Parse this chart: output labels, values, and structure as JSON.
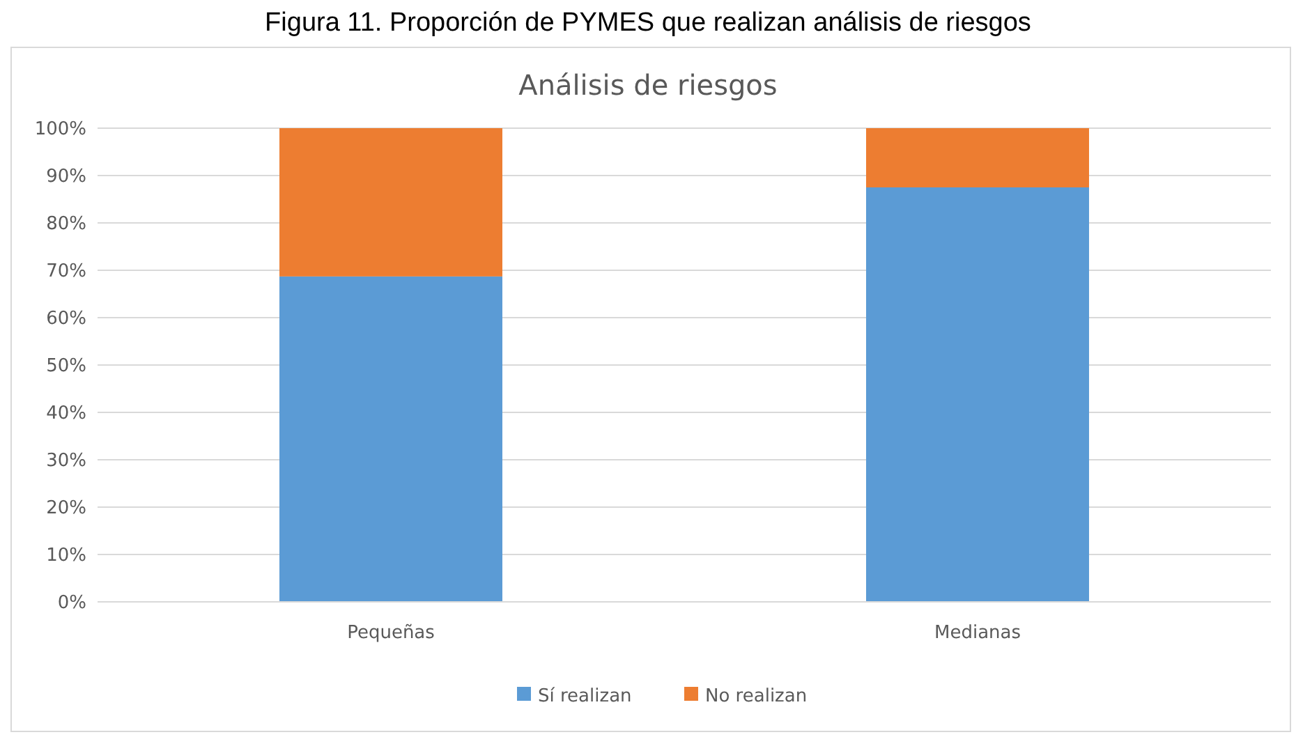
{
  "chart_data": {
    "type": "bar",
    "title": "Análisis de riesgos",
    "annotations": [
      "Figura 11. Proporción de PYMES que realizan análisis de riesgos"
    ],
    "categories": [
      "Pequeñas",
      "Medianas"
    ],
    "series": [
      {
        "name": "Sí realizan",
        "color": "#5b9bd5",
        "values": [
          68.7,
          87.5
        ]
      },
      {
        "name": "No realizan",
        "color": "#ed7d31",
        "values": [
          31.3,
          12.5
        ]
      }
    ],
    "stacked": true,
    "ylim": [
      0,
      100
    ],
    "yticks": [
      {
        "value": 0,
        "label": "0%"
      },
      {
        "value": 10,
        "label": "10%"
      },
      {
        "value": 20,
        "label": "20%"
      },
      {
        "value": 30,
        "label": "30%"
      },
      {
        "value": 40,
        "label": "40%"
      },
      {
        "value": 50,
        "label": "50%"
      },
      {
        "value": 60,
        "label": "60%"
      },
      {
        "value": 70,
        "label": "70%"
      },
      {
        "value": 80,
        "label": "80%"
      },
      {
        "value": 90,
        "label": "90%"
      },
      {
        "value": 100,
        "label": "100%"
      }
    ],
    "grid": "y",
    "legend": "bottom"
  }
}
